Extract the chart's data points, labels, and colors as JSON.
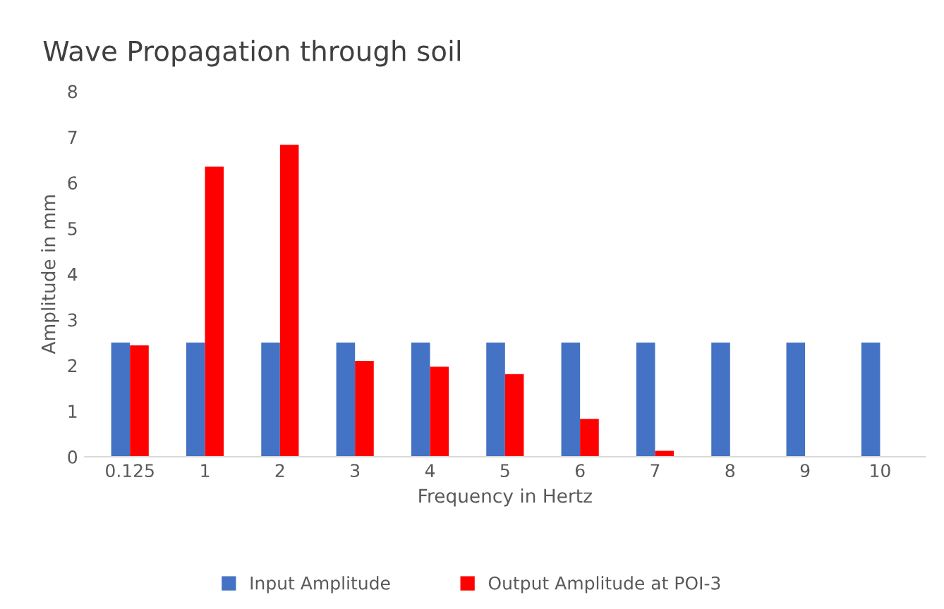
{
  "chart_data": {
    "type": "bar",
    "title": "Wave Propagation through soil",
    "xlabel": "Frequency in Hertz",
    "ylabel": "Amplitude in mm",
    "categories": [
      "0.125",
      "1",
      "2",
      "3",
      "4",
      "5",
      "6",
      "7",
      "8",
      "9",
      "10"
    ],
    "series": [
      {
        "name": "Input Amplitude",
        "color": "#4472c4",
        "values": [
          2.5,
          2.5,
          2.5,
          2.5,
          2.5,
          2.5,
          2.5,
          2.5,
          2.5,
          2.5,
          2.5
        ]
      },
      {
        "name": "Output Amplitude at POI-3",
        "color": "#ff0000",
        "values": [
          2.44,
          6.35,
          6.83,
          2.1,
          1.97,
          1.81,
          0.83,
          0.13,
          0,
          0,
          0
        ]
      }
    ],
    "ylim": [
      0,
      8
    ],
    "yticks": [
      0,
      1,
      2,
      3,
      4,
      5,
      6,
      7,
      8
    ],
    "grid": false,
    "legend": "bottom"
  }
}
